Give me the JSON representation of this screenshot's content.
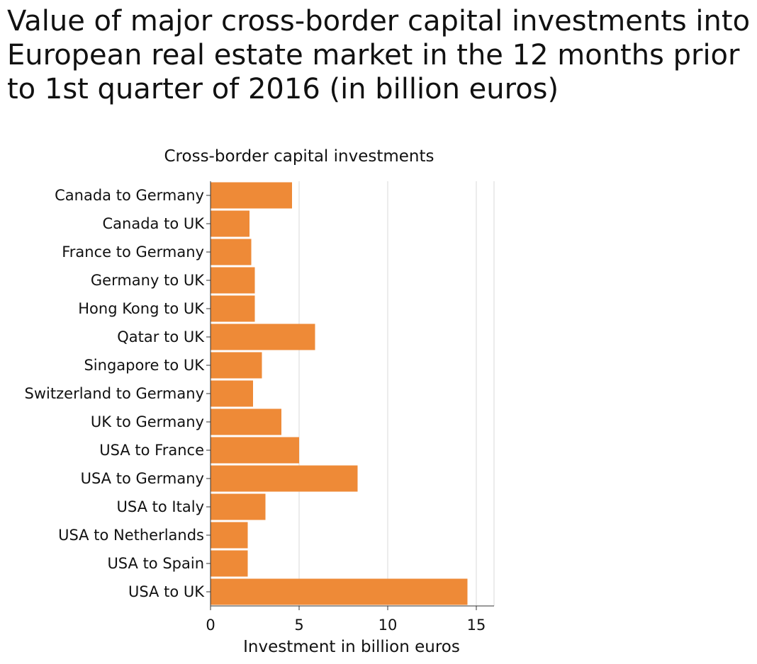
{
  "chart_data": {
    "type": "bar",
    "orientation": "horizontal",
    "title": "Value of major cross-border capital investments into European real estate market in the 12 months prior to 1st quarter of 2016 (in billion euros)",
    "ylabel": "Cross-border capital investments",
    "xlabel": "Investment in billion euros",
    "categories": [
      "Canada to Germany",
      "Canada to UK",
      "France to Germany",
      "Germany to UK",
      "Hong Kong to UK",
      "Qatar to UK",
      "Singapore to UK",
      "Switzerland to Germany",
      "UK to Germany",
      "USA to France",
      "USA to Germany",
      "USA to Italy",
      "USA to Netherlands",
      "USA to Spain",
      "USA to UK"
    ],
    "values": [
      4.6,
      2.2,
      2.3,
      2.5,
      2.5,
      5.9,
      2.9,
      2.4,
      4.0,
      5.0,
      8.3,
      3.1,
      2.1,
      2.1,
      14.5
    ],
    "xlim": [
      0,
      16
    ],
    "xticks": [
      0,
      5,
      10,
      15
    ],
    "grid": "vertical",
    "legend": "none",
    "bar_color": "#ee8a37"
  }
}
